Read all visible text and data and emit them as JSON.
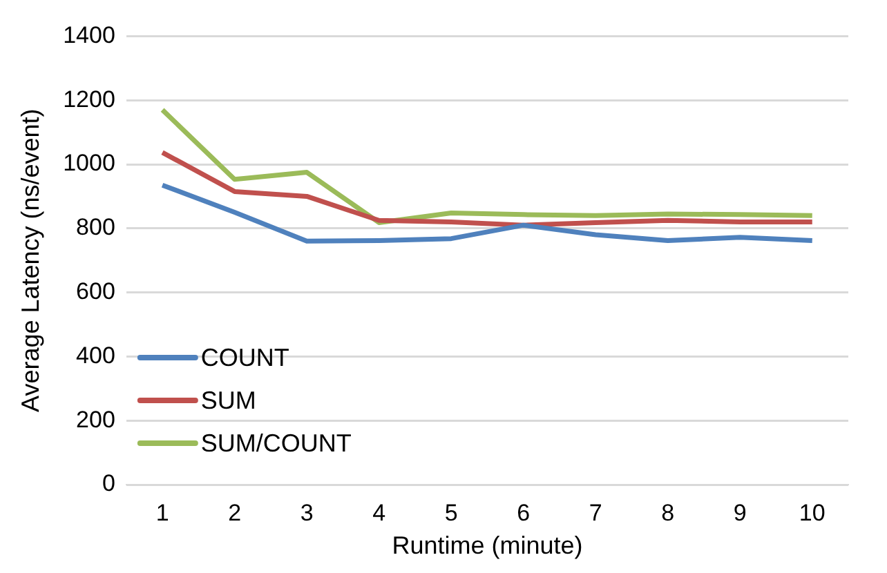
{
  "chart_data": {
    "type": "line",
    "xlabel": "Runtime (minute)",
    "ylabel": "Average Latency (ns/event)",
    "categories": [
      "1",
      "2",
      "3",
      "4",
      "5",
      "6",
      "7",
      "8",
      "9",
      "10"
    ],
    "series": [
      {
        "name": "COUNT",
        "color": "#4f81bd",
        "values": [
          935,
          850,
          760,
          762,
          768,
          810,
          780,
          762,
          772,
          762
        ]
      },
      {
        "name": "SUM",
        "color": "#c0504d",
        "values": [
          1037,
          915,
          900,
          825,
          820,
          810,
          818,
          825,
          820,
          820
        ]
      },
      {
        "name": "SUM/COUNT",
        "color": "#9bbb59",
        "values": [
          1170,
          953,
          975,
          818,
          848,
          843,
          840,
          845,
          843,
          840
        ]
      }
    ],
    "ylim": [
      0,
      1400
    ],
    "yticks": [
      0,
      200,
      400,
      600,
      800,
      1000,
      1200,
      1400
    ],
    "grid": "y",
    "legend": "bottom left",
    "marker": "none",
    "line_style": "solid"
  }
}
